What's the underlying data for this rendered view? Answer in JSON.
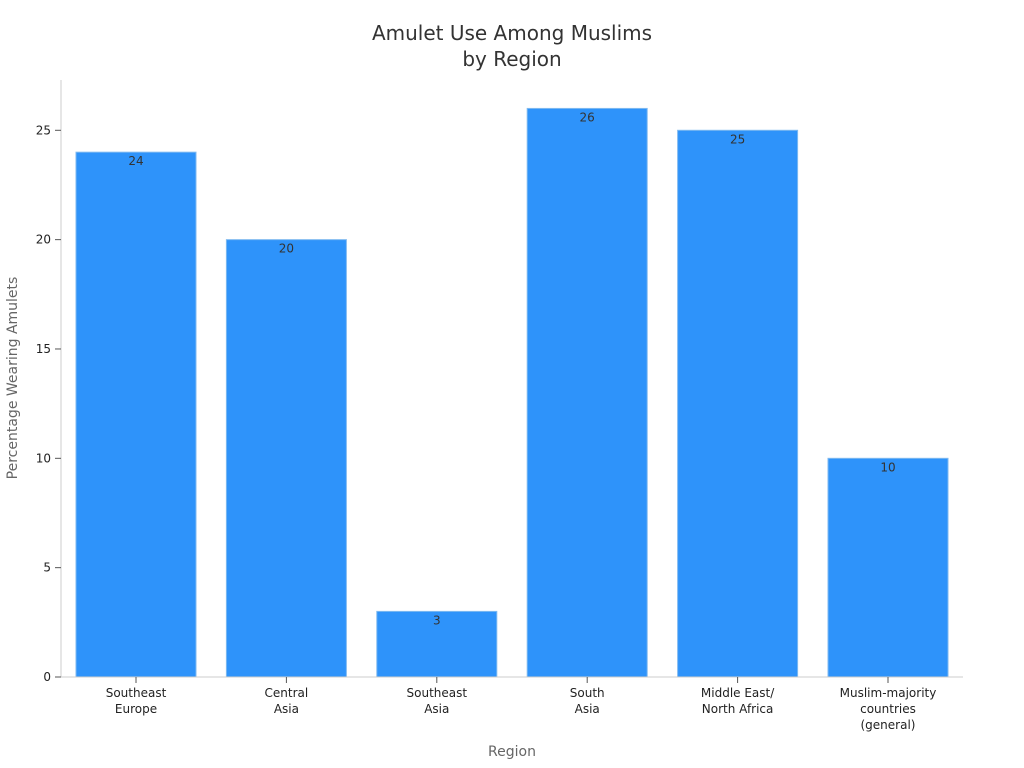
{
  "chart_data": {
    "type": "bar",
    "title_lines": [
      "Amulet Use Among Muslims",
      "by Region"
    ],
    "xlabel": "Region",
    "ylabel": "Percentage Wearing Amulets",
    "categories": [
      [
        "Southeast",
        "Europe"
      ],
      [
        "Central",
        "Asia"
      ],
      [
        "Southeast",
        "Asia"
      ],
      [
        "South",
        "Asia"
      ],
      [
        "Middle East/",
        "North Africa"
      ],
      [
        "Muslim-majority",
        "countries",
        "(general)"
      ]
    ],
    "values": [
      24,
      20,
      3,
      26,
      25,
      10
    ],
    "data_labels": [
      "24",
      "20",
      "3",
      "26",
      "25",
      "10"
    ],
    "yticks": [
      0,
      5,
      10,
      15,
      20,
      25
    ],
    "ylim": [
      0,
      27.3
    ],
    "grid": false,
    "legend": "none",
    "bar_color": "#2e93fa"
  }
}
